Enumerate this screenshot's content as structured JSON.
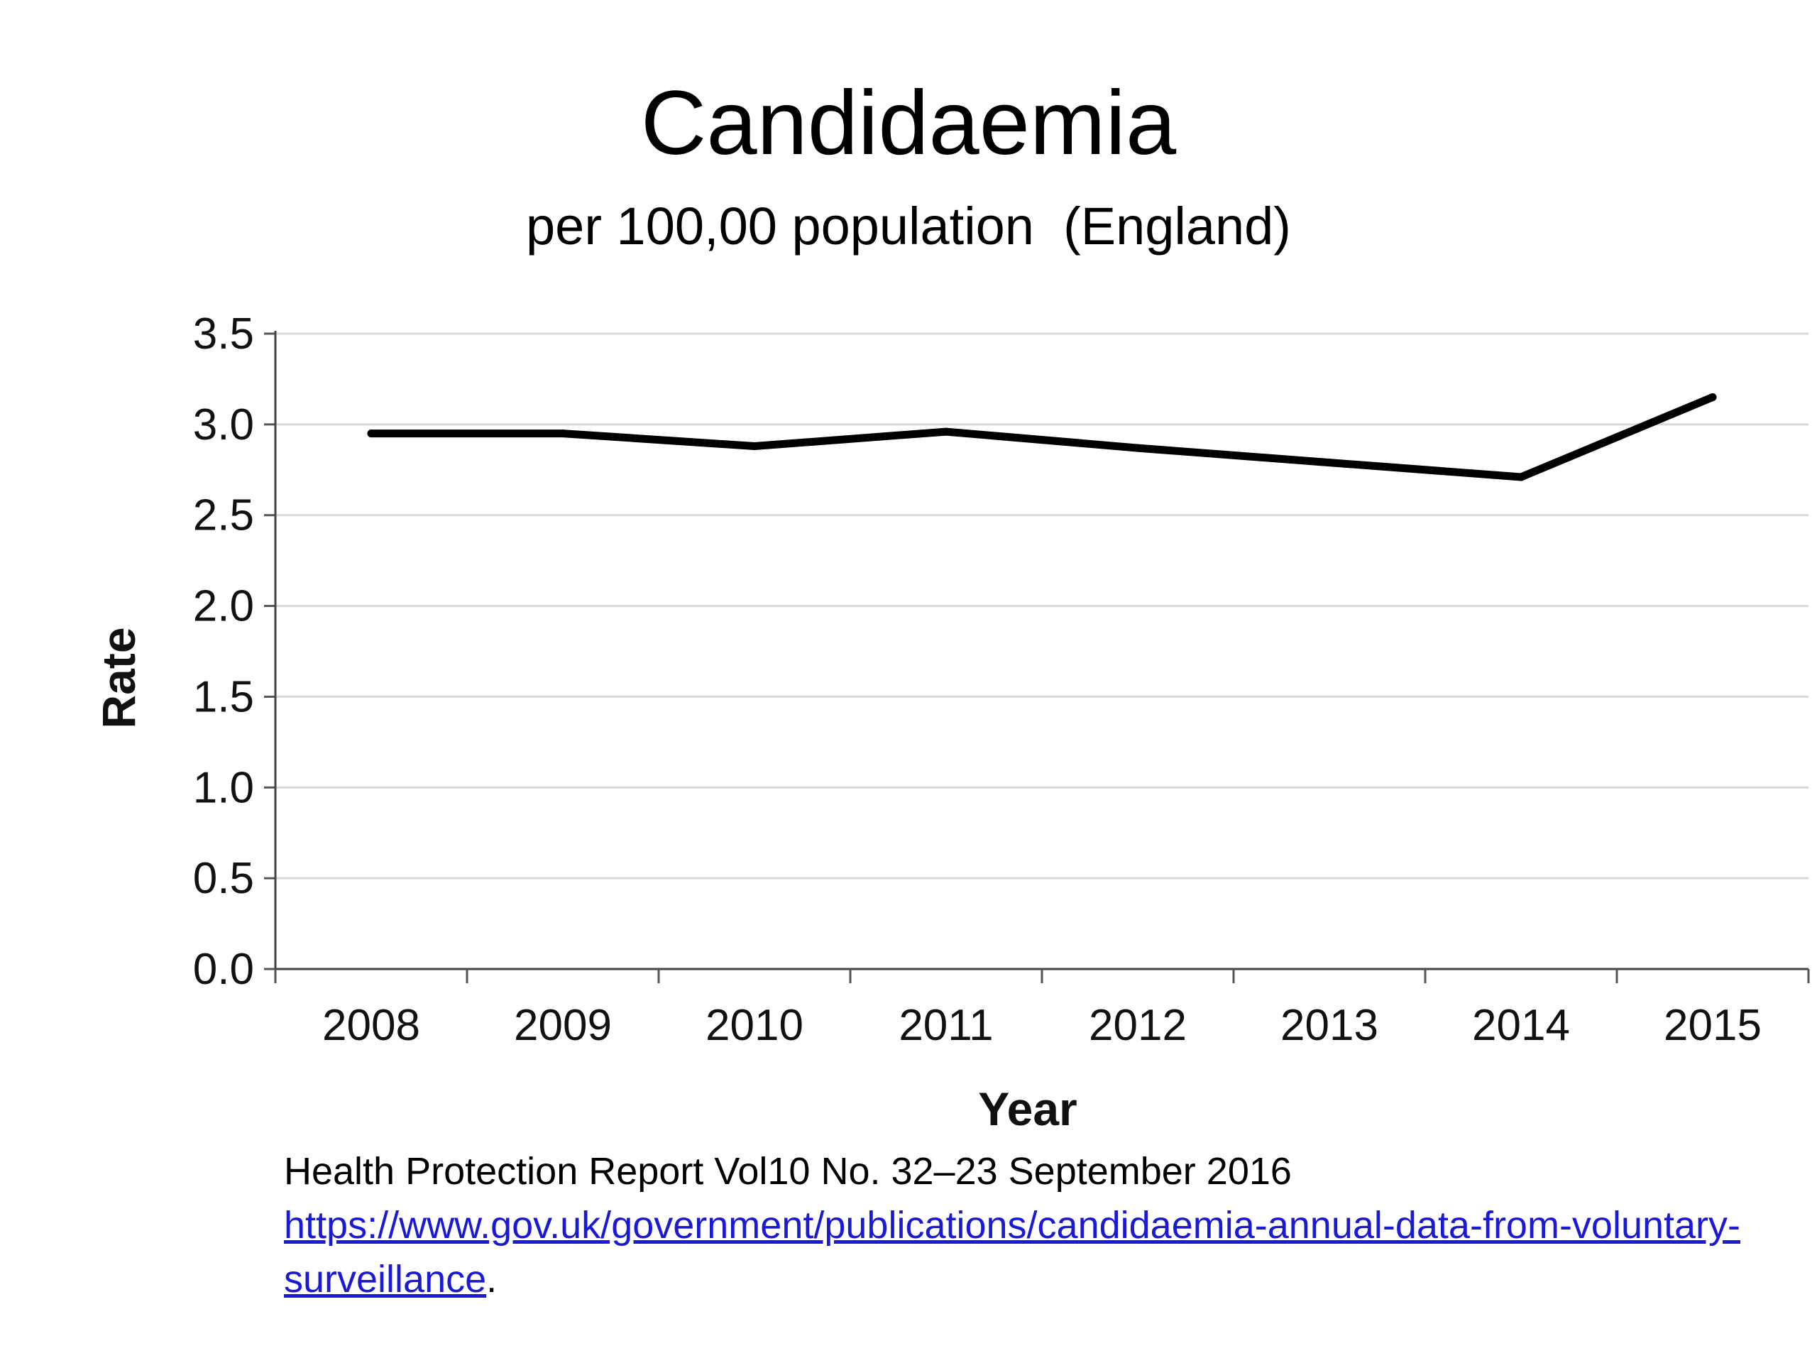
{
  "header": {
    "title": "Candidaemia",
    "subtitle": "per 100,00 population  (England)"
  },
  "chart_data": {
    "type": "line",
    "xlabel": "Year",
    "ylabel": "Rate",
    "ylim": [
      0,
      3.5
    ],
    "yticks": [
      "0.0",
      "0.5",
      "1.0",
      "1.5",
      "2.0",
      "2.5",
      "3.0",
      "3.5"
    ],
    "categories": [
      "2008",
      "2009",
      "2010",
      "2011",
      "2012",
      "2013",
      "2014",
      "2015"
    ],
    "series": [
      {
        "values": [
          2.95,
          2.95,
          2.88,
          2.96,
          2.87,
          2.79,
          2.71,
          3.15
        ]
      }
    ],
    "grid": true,
    "line_color": "#000000",
    "grid_color": "#d9d9d9"
  },
  "footer": {
    "source_text": "Health Protection Report Vol10 No. 32–23 September 2016",
    "link_text": "https://www.gov.uk/government/publications/candidaemia-annual-data-from-voluntary-surveillance",
    "trailing": "."
  }
}
